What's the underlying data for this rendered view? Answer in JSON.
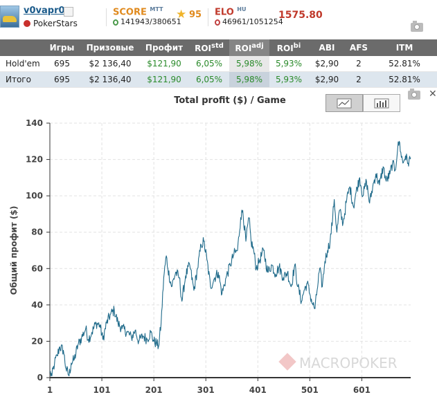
{
  "player": {
    "name": "v0vapr0",
    "room": "PokerStars"
  },
  "score": {
    "label": "SCORE",
    "sup": "MTT",
    "rank": "141943/380651",
    "stars": "95"
  },
  "elo": {
    "label": "ELO",
    "sup": "HU",
    "rank": "46961/1051254",
    "value": "1575.80"
  },
  "table": {
    "headers": [
      "",
      "Игры",
      "Призовые",
      "Профит",
      "ROI",
      "ROI",
      "ROI",
      "ABI",
      "AFS",
      "ITM"
    ],
    "header_sups": [
      "",
      "",
      "",
      "",
      "std",
      "adj",
      "bi",
      "",
      "",
      ""
    ],
    "rows": [
      {
        "cells": [
          "Hold'em",
          "695",
          "$2 136,40",
          "$121,90",
          "6,05%",
          "5,98%",
          "5,93%",
          "$2,90",
          "2",
          "52.81%"
        ]
      },
      {
        "cells": [
          "Итого",
          "695",
          "$2 136,40",
          "$121,90",
          "6,05%",
          "5,98%",
          "5,93%",
          "$2,90",
          "2",
          "52.81%"
        ]
      }
    ]
  },
  "chart_data": {
    "type": "line",
    "title": "Total profit ($) / Game",
    "xlabel": "",
    "ylabel": "Общий профит ($)",
    "x_ticks": [
      1,
      101,
      201,
      301,
      401,
      501,
      601
    ],
    "y_ticks": [
      0,
      20,
      40,
      60,
      80,
      100,
      120,
      140
    ],
    "xlim": [
      1,
      695
    ],
    "ylim": [
      0,
      140
    ],
    "grid": true,
    "watermark": "MACROPOKER",
    "series": [
      {
        "name": "Total profit",
        "color": "#1f6a8a",
        "keypoints": [
          [
            1,
            3
          ],
          [
            5,
            1
          ],
          [
            10,
            8
          ],
          [
            15,
            12
          ],
          [
            20,
            17
          ],
          [
            27,
            15
          ],
          [
            32,
            5
          ],
          [
            38,
            1
          ],
          [
            42,
            8
          ],
          [
            48,
            10
          ],
          [
            55,
            18
          ],
          [
            62,
            22
          ],
          [
            70,
            27
          ],
          [
            75,
            21
          ],
          [
            82,
            25
          ],
          [
            90,
            30
          ],
          [
            97,
            29
          ],
          [
            103,
            21
          ],
          [
            110,
            30
          ],
          [
            118,
            35
          ],
          [
            125,
            37
          ],
          [
            132,
            30
          ],
          [
            140,
            27
          ],
          [
            150,
            25
          ],
          [
            158,
            22
          ],
          [
            165,
            26
          ],
          [
            172,
            20
          ],
          [
            180,
            23
          ],
          [
            188,
            21
          ],
          [
            195,
            25
          ],
          [
            201,
            20
          ],
          [
            206,
            19
          ],
          [
            210,
            17
          ],
          [
            215,
            30
          ],
          [
            220,
            55
          ],
          [
            225,
            67
          ],
          [
            228,
            60
          ],
          [
            235,
            50
          ],
          [
            243,
            58
          ],
          [
            250,
            55
          ],
          [
            255,
            42
          ],
          [
            262,
            56
          ],
          [
            270,
            62
          ],
          [
            278,
            48
          ],
          [
            285,
            60
          ],
          [
            292,
            73
          ],
          [
            297,
            75
          ],
          [
            303,
            65
          ],
          [
            310,
            50
          ],
          [
            318,
            55
          ],
          [
            325,
            58
          ],
          [
            332,
            46
          ],
          [
            340,
            55
          ],
          [
            348,
            62
          ],
          [
            355,
            68
          ],
          [
            362,
            70
          ],
          [
            368,
            88
          ],
          [
            372,
            92
          ],
          [
            378,
            75
          ],
          [
            384,
            88
          ],
          [
            388,
            75
          ],
          [
            393,
            70
          ],
          [
            398,
            60
          ],
          [
            405,
            65
          ],
          [
            412,
            70
          ],
          [
            420,
            58
          ],
          [
            428,
            62
          ],
          [
            435,
            57
          ],
          [
            442,
            61
          ],
          [
            450,
            55
          ],
          [
            458,
            58
          ],
          [
            465,
            50
          ],
          [
            472,
            62
          ],
          [
            478,
            50
          ],
          [
            485,
            42
          ],
          [
            490,
            48
          ],
          [
            496,
            52
          ],
          [
            502,
            45
          ],
          [
            507,
            40
          ],
          [
            511,
            38
          ],
          [
            515,
            48
          ],
          [
            520,
            60
          ],
          [
            525,
            50
          ],
          [
            530,
            64
          ],
          [
            535,
            70
          ],
          [
            540,
            75
          ],
          [
            545,
            88
          ],
          [
            548,
            98
          ],
          [
            553,
            80
          ],
          [
            558,
            92
          ],
          [
            565,
            85
          ],
          [
            572,
            98
          ],
          [
            578,
            105
          ],
          [
            585,
            94
          ],
          [
            590,
            102
          ],
          [
            597,
            110
          ],
          [
            603,
            100
          ],
          [
            610,
            108
          ],
          [
            616,
            96
          ],
          [
            622,
            105
          ],
          [
            628,
            112
          ],
          [
            635,
            106
          ],
          [
            642,
            116
          ],
          [
            648,
            108
          ],
          [
            655,
            112
          ],
          [
            660,
            118
          ],
          [
            665,
            114
          ],
          [
            670,
            126
          ],
          [
            673,
            130
          ],
          [
            676,
            124
          ],
          [
            680,
            118
          ],
          [
            685,
            122
          ],
          [
            690,
            118
          ],
          [
            695,
            121
          ]
        ]
      }
    ]
  }
}
